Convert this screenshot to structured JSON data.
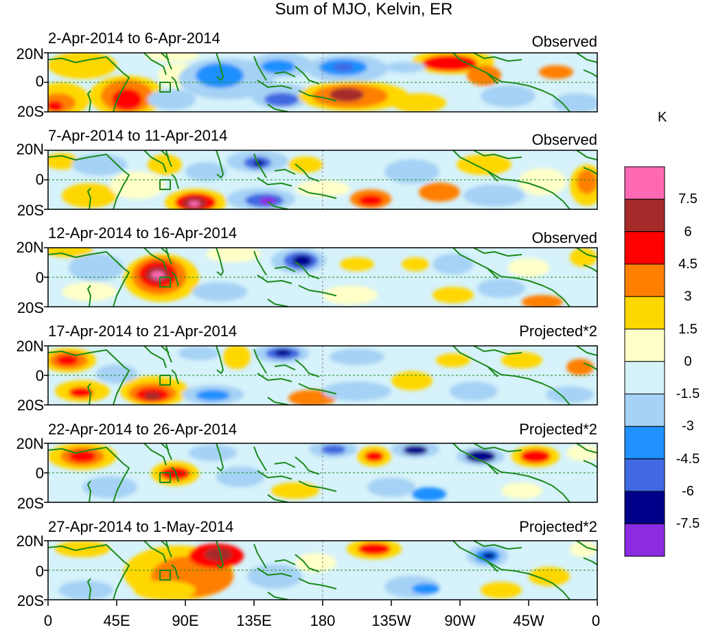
{
  "title": "Sum of MJO, Kelvin, ER",
  "panels": [
    {
      "period": "2-Apr-2014 to 6-Apr-2014",
      "status": "Observed"
    },
    {
      "period": "7-Apr-2014 to 11-Apr-2014",
      "status": "Observed"
    },
    {
      "period": "12-Apr-2014 to 16-Apr-2014",
      "status": "Observed"
    },
    {
      "period": "17-Apr-2014 to 21-Apr-2014",
      "status": "Projected*2"
    },
    {
      "period": "22-Apr-2014 to 26-Apr-2014",
      "status": "Projected*2"
    },
    {
      "period": "27-Apr-2014 to 1-May-2014",
      "status": "Projected*2"
    }
  ],
  "lat_labels": [
    "20N",
    "0",
    "20S"
  ],
  "lon_labels": [
    "0",
    "45E",
    "90E",
    "135E",
    "180",
    "135W",
    "90W",
    "45W",
    "0"
  ],
  "colorbar": {
    "unit": "K",
    "levels": [
      "7.5",
      "6",
      "4.5",
      "3",
      "1.5",
      "0",
      "-1.5",
      "-3",
      "-4.5",
      "-6",
      "-7.5"
    ],
    "colors": [
      "#ff69b4",
      "#a52a2a",
      "#ff0000",
      "#ff7f00",
      "#ffd700",
      "#ffffc8",
      "#d6f2fa",
      "#a6d2f5",
      "#1e90ff",
      "#4169e1",
      "#00008b",
      "#8b2be2"
    ]
  },
  "colors": {
    "coastline": "#1a8a1a",
    "frame": "#000000"
  }
}
